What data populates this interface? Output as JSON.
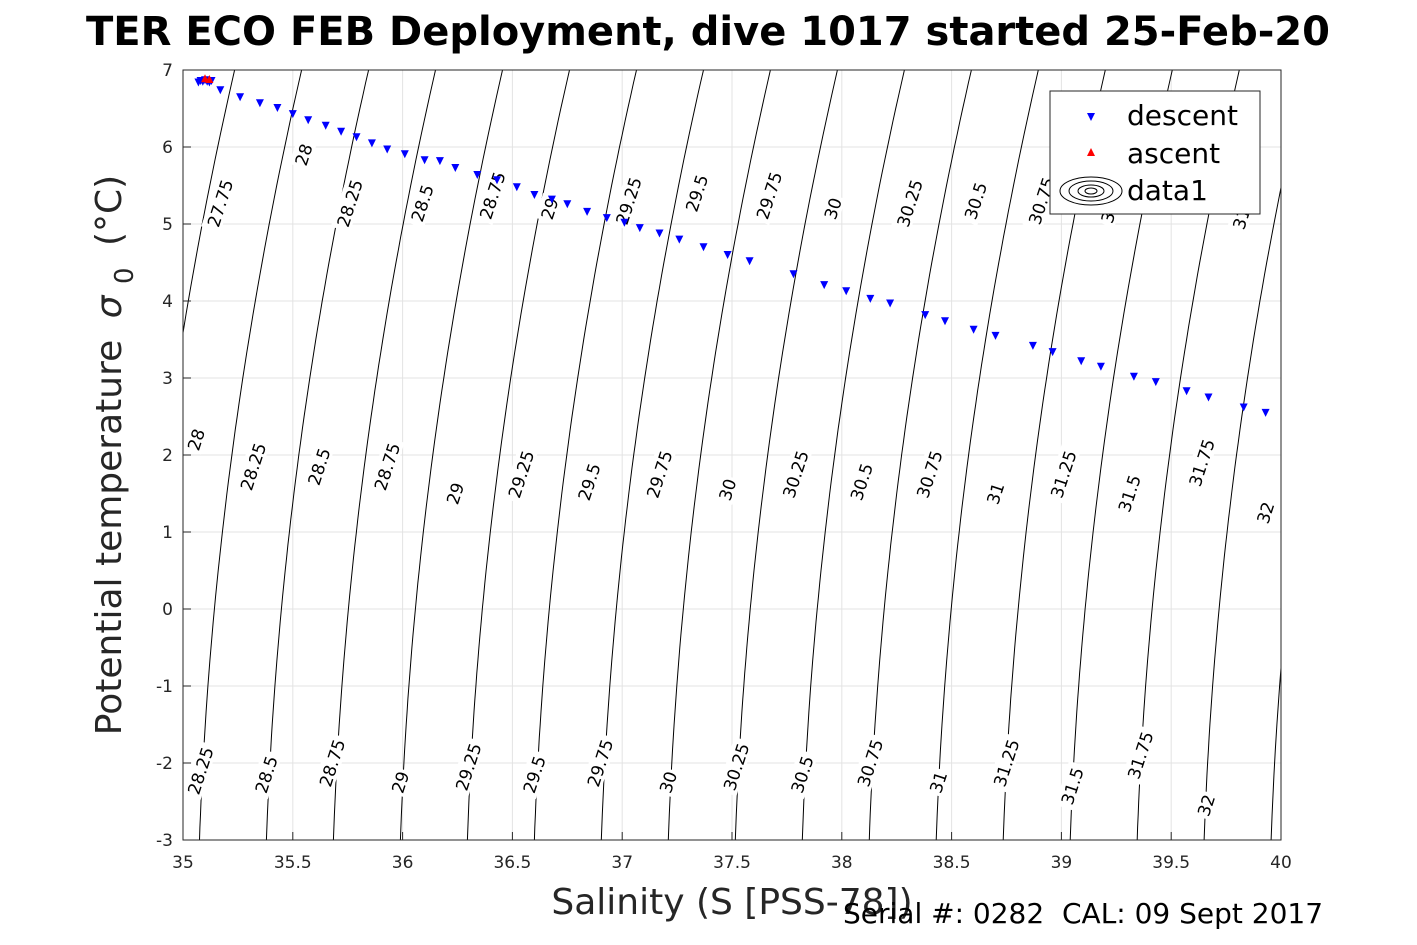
{
  "chart_data": {
    "type": "scatter",
    "title": "TER ECO FEB Deployment, dive 1017 started 25-Feb-20",
    "xlabel": "Salinity (S [PSS-78])",
    "ylabel": "Potential temperature",
    "ylabel_symbol": "σ",
    "ylabel_subscript": "0",
    "ylabel_unit": "(°C)",
    "xlim": [
      35,
      40
    ],
    "ylim": [
      -3,
      7
    ],
    "xticks": [
      "35",
      "35.5",
      "36",
      "36.5",
      "37",
      "37.5",
      "38",
      "38.5",
      "39",
      "39.5",
      "40"
    ],
    "yticks": [
      "-3",
      "-2",
      "-1",
      "0",
      "1",
      "2",
      "3",
      "4",
      "5",
      "6",
      "7"
    ],
    "grid": true,
    "legend_position": "top-right",
    "legend": [
      "descent",
      "ascent",
      "data1"
    ],
    "descent_color": "#0000ff",
    "ascent_color": "#ff0000",
    "series": [
      {
        "name": "descent",
        "marker": "triangle-down",
        "x": [
          35.07,
          35.08,
          35.09,
          35.1,
          35.11,
          35.12,
          35.13,
          35.17,
          35.26,
          35.35,
          35.43,
          35.5,
          35.57,
          35.65,
          35.72,
          35.79,
          35.86,
          35.93,
          36.01,
          36.1,
          36.17,
          36.24,
          36.34,
          36.43,
          36.52,
          36.6,
          36.68,
          36.75,
          36.84,
          36.93,
          37.01,
          37.08,
          37.17,
          37.26,
          37.37,
          37.48,
          37.58,
          37.78,
          37.92,
          38.02,
          38.13,
          38.22,
          38.38,
          38.47,
          38.6,
          38.7,
          38.87,
          38.96,
          39.09,
          39.18,
          39.33,
          39.43,
          39.57,
          39.67,
          39.83,
          39.93
        ],
        "y": [
          6.85,
          6.87,
          6.86,
          6.88,
          6.86,
          6.85,
          6.87,
          6.75,
          6.66,
          6.58,
          6.52,
          6.44,
          6.36,
          6.29,
          6.21,
          6.14,
          6.06,
          5.98,
          5.92,
          5.84,
          5.83,
          5.74,
          5.65,
          5.58,
          5.49,
          5.39,
          5.33,
          5.27,
          5.17,
          5.09,
          5.03,
          4.96,
          4.89,
          4.81,
          4.71,
          4.61,
          4.53,
          4.36,
          4.22,
          4.14,
          4.04,
          3.98,
          3.83,
          3.75,
          3.64,
          3.56,
          3.43,
          3.35,
          3.23,
          3.16,
          3.03,
          2.96,
          2.84,
          2.76,
          2.63,
          2.56
        ]
      },
      {
        "name": "ascent",
        "marker": "triangle-up",
        "x": [
          35.1,
          35.12
        ],
        "y": [
          6.88,
          6.87
        ]
      }
    ],
    "contour_levels": [
      "27.75",
      "28",
      "28.25",
      "28.5",
      "28.75",
      "29",
      "29.25",
      "29.5",
      "29.75",
      "30",
      "30.25",
      "30.5",
      "30.75",
      "31",
      "31.25",
      "31.5",
      "31.75",
      "32"
    ],
    "contour_labels": [
      {
        "text": "28",
        "x": 35.55,
        "y": 5.9
      },
      {
        "text": "27.75",
        "x": 35.17,
        "y": 5.27
      },
      {
        "text": "28.25",
        "x": 35.76,
        "y": 5.27
      },
      {
        "text": "28.5",
        "x": 36.09,
        "y": 5.27
      },
      {
        "text": "28.75",
        "x": 36.41,
        "y": 5.37
      },
      {
        "text": "29",
        "x": 36.67,
        "y": 5.2
      },
      {
        "text": "29.25",
        "x": 37.03,
        "y": 5.3
      },
      {
        "text": "29.5",
        "x": 37.34,
        "y": 5.4
      },
      {
        "text": "29.75",
        "x": 37.67,
        "y": 5.37
      },
      {
        "text": "30",
        "x": 37.96,
        "y": 5.2
      },
      {
        "text": "30.25",
        "x": 38.31,
        "y": 5.27
      },
      {
        "text": "30.5",
        "x": 38.61,
        "y": 5.3
      },
      {
        "text": "30.75",
        "x": 38.91,
        "y": 5.3
      },
      {
        "text": "31",
        "x": 39.22,
        "y": 5.15
      },
      {
        "text": "31",
        "x": 39.82,
        "y": 5.07
      },
      {
        "text": "28",
        "x": 35.06,
        "y": 2.2
      },
      {
        "text": "28.25",
        "x": 35.32,
        "y": 1.85
      },
      {
        "text": "28.5",
        "x": 35.62,
        "y": 1.85
      },
      {
        "text": "28.75",
        "x": 35.93,
        "y": 1.85
      },
      {
        "text": "29",
        "x": 36.24,
        "y": 1.5
      },
      {
        "text": "29.25",
        "x": 36.54,
        "y": 1.75
      },
      {
        "text": "29.5",
        "x": 36.85,
        "y": 1.65
      },
      {
        "text": "29.75",
        "x": 37.17,
        "y": 1.75
      },
      {
        "text": "30",
        "x": 37.48,
        "y": 1.55
      },
      {
        "text": "30.25",
        "x": 37.79,
        "y": 1.75
      },
      {
        "text": "30.5",
        "x": 38.09,
        "y": 1.65
      },
      {
        "text": "30.75",
        "x": 38.4,
        "y": 1.75
      },
      {
        "text": "31",
        "x": 38.7,
        "y": 1.5
      },
      {
        "text": "31.25",
        "x": 39.01,
        "y": 1.75
      },
      {
        "text": "31.5",
        "x": 39.31,
        "y": 1.5
      },
      {
        "text": "31.75",
        "x": 39.64,
        "y": 1.9
      },
      {
        "text": "32",
        "x": 39.93,
        "y": 1.25
      },
      {
        "text": "28.25",
        "x": 35.08,
        "y": -2.1
      },
      {
        "text": "28.5",
        "x": 35.38,
        "y": -2.15
      },
      {
        "text": "28.75",
        "x": 35.68,
        "y": -2.0
      },
      {
        "text": "29",
        "x": 35.99,
        "y": -2.25
      },
      {
        "text": "29.25",
        "x": 36.3,
        "y": -2.05
      },
      {
        "text": "29.5",
        "x": 36.6,
        "y": -2.15
      },
      {
        "text": "29.75",
        "x": 36.9,
        "y": -2.0
      },
      {
        "text": "30",
        "x": 37.21,
        "y": -2.25
      },
      {
        "text": "30.25",
        "x": 37.52,
        "y": -2.05
      },
      {
        "text": "30.5",
        "x": 37.82,
        "y": -2.15
      },
      {
        "text": "30.75",
        "x": 38.13,
        "y": -2.0
      },
      {
        "text": "31",
        "x": 38.44,
        "y": -2.25
      },
      {
        "text": "31.25",
        "x": 38.75,
        "y": -2.0
      },
      {
        "text": "31.5",
        "x": 39.05,
        "y": -2.3
      },
      {
        "text": "31.75",
        "x": 39.36,
        "y": -1.9
      },
      {
        "text": "32",
        "x": 39.66,
        "y": -2.55
      }
    ]
  },
  "footer": "Serial #: 0282  CAL: 09 Sept 2017"
}
